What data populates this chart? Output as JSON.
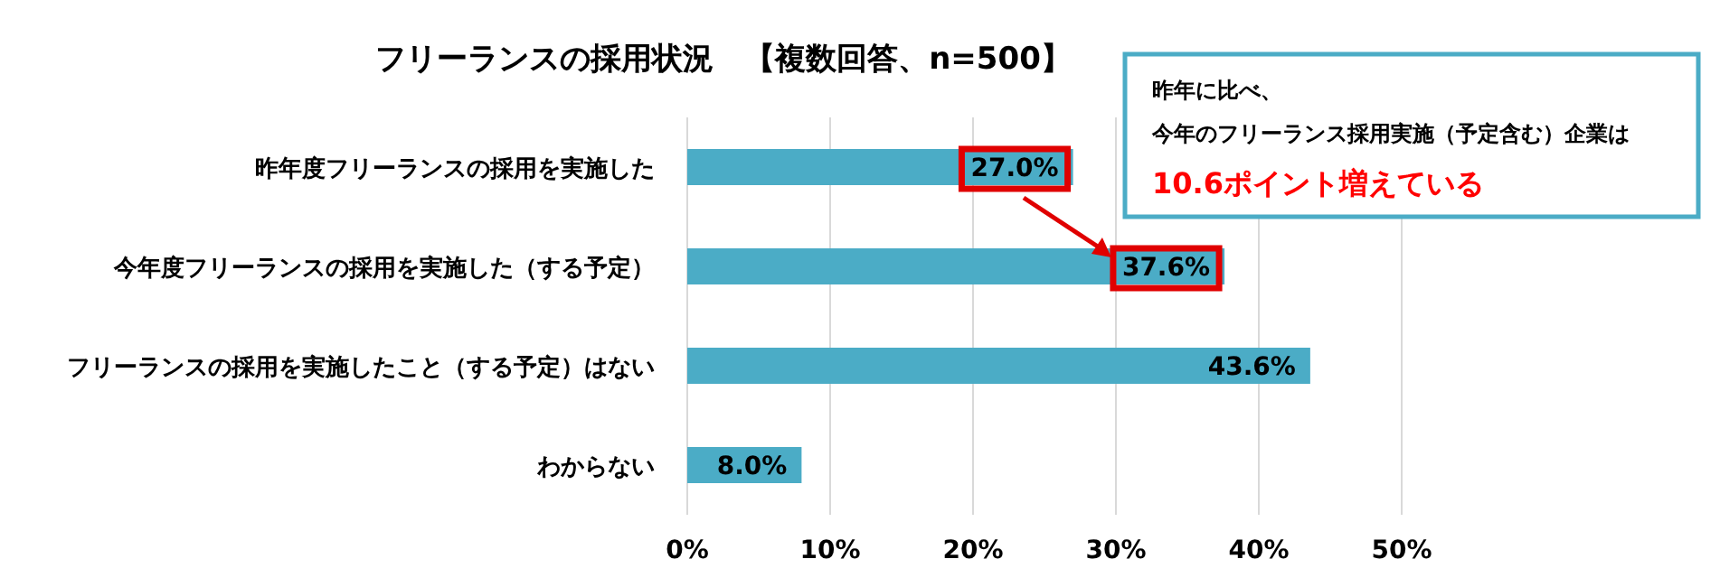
{
  "chart_data": {
    "type": "bar",
    "orientation": "horizontal",
    "title": "フリーランスの採用状況　【複数回答、n=500】",
    "categories": [
      "昨年度フリーランスの採用を実施した",
      "今年度フリーランスの採用を実施した（する予定）",
      "フリーランスの採用を実施したこと（する予定）はない",
      "わからない"
    ],
    "values": [
      27.0,
      37.6,
      43.6,
      8.0
    ],
    "value_labels": [
      "27.0%",
      "37.6%",
      "43.6%",
      "8.0%"
    ],
    "color": "#4bacc6",
    "xlim": [
      0,
      50
    ],
    "xticks": [
      {
        "value": 0,
        "label": "0%"
      },
      {
        "value": 10,
        "label": "10%"
      },
      {
        "value": 20,
        "label": "20%"
      },
      {
        "value": 30,
        "label": "30%"
      },
      {
        "value": 40,
        "label": "40%"
      },
      {
        "value": 50,
        "label": "50%"
      }
    ],
    "grid": "x",
    "annotations": [
      "昨年に比べ、",
      "今年のフリーランス採用実施（予定含む）企業は",
      "10.6ポイント増えている"
    ]
  }
}
